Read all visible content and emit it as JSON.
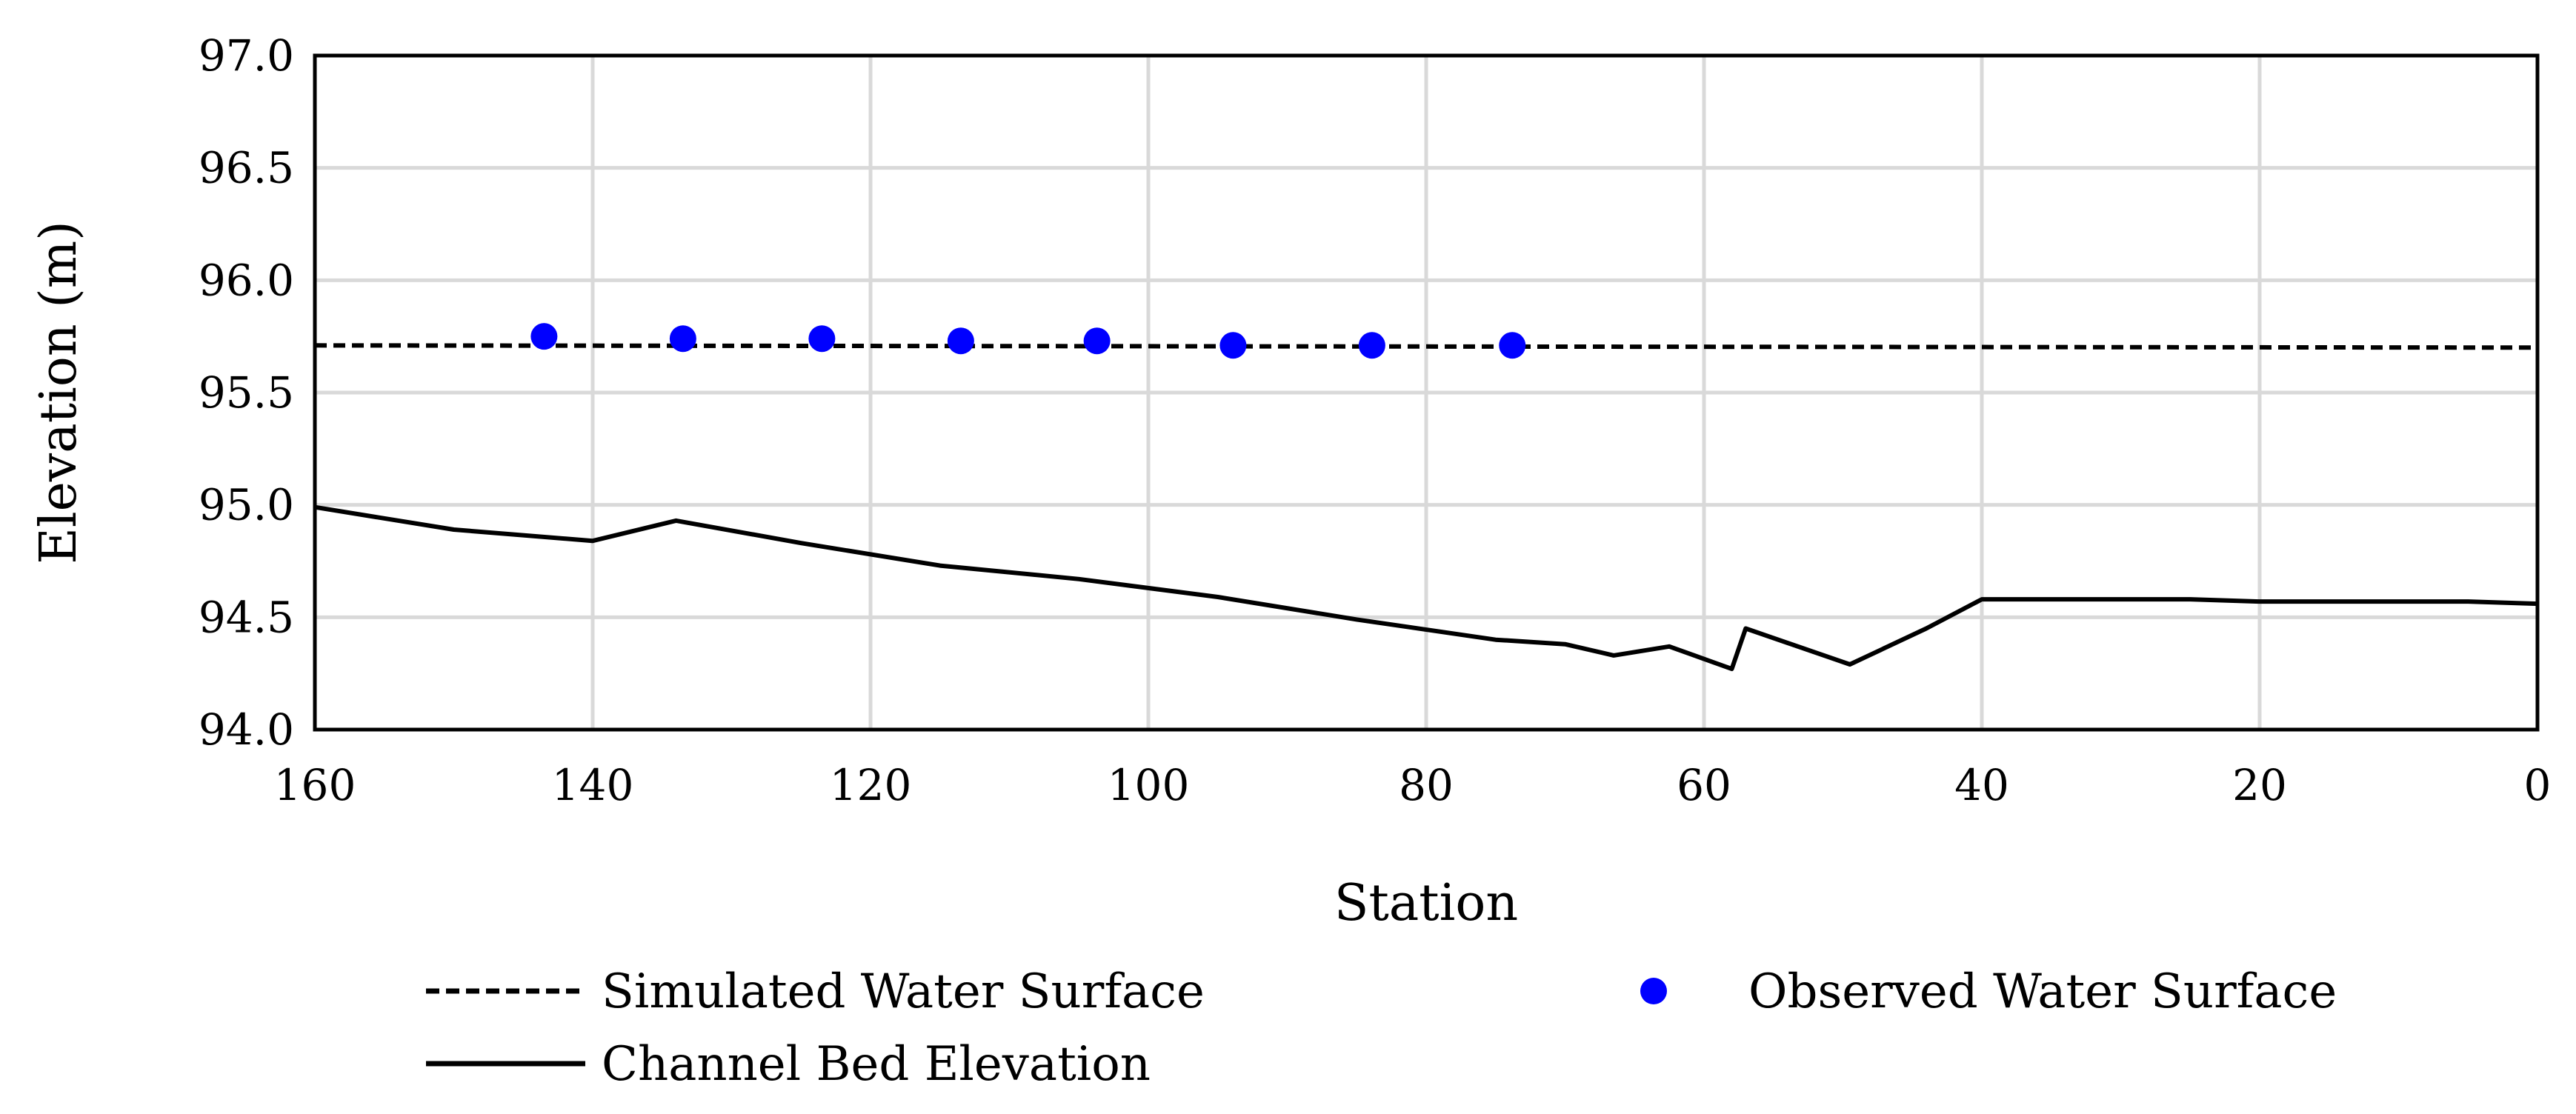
{
  "chart_data": {
    "type": "line",
    "title": "",
    "xlabel": "Station",
    "ylabel": "Elevation (m)",
    "xlim": [
      160,
      0
    ],
    "x_reversed": true,
    "ylim": [
      94.0,
      97.0
    ],
    "xticks": [
      160,
      140,
      120,
      100,
      80,
      60,
      40,
      20,
      0
    ],
    "yticks": [
      "94.0",
      "94.5",
      "95.0",
      "95.5",
      "96.0",
      "96.5",
      "97.0"
    ],
    "grid": true,
    "legend_position": "bottom",
    "series": [
      {
        "name": "Simulated Water Surface",
        "style": "dashed",
        "color": "#000000",
        "x": [
          160,
          0
        ],
        "y": [
          95.71,
          95.7
        ]
      },
      {
        "name": "Observed Water Surface",
        "style": "markers",
        "color": "#0000ff",
        "x": [
          143.5,
          133.5,
          123.5,
          113.5,
          103.7,
          93.9,
          83.9,
          73.8
        ],
        "y": [
          95.75,
          95.74,
          95.74,
          95.73,
          95.73,
          95.71,
          95.71,
          95.71
        ]
      },
      {
        "name": "Channel Bed Elevation",
        "style": "solid",
        "color": "#000000",
        "x": [
          160,
          150,
          140,
          134,
          125,
          115,
          105,
          95,
          85,
          75,
          70,
          66.5,
          62.5,
          58,
          57,
          49.5,
          44,
          40,
          35,
          25,
          20,
          5,
          0
        ],
        "y": [
          94.99,
          94.89,
          94.84,
          94.93,
          94.83,
          94.73,
          94.67,
          94.59,
          94.49,
          94.4,
          94.38,
          94.33,
          94.37,
          94.27,
          94.45,
          94.29,
          94.45,
          94.58,
          94.58,
          94.58,
          94.57,
          94.57,
          94.56
        ]
      }
    ]
  }
}
